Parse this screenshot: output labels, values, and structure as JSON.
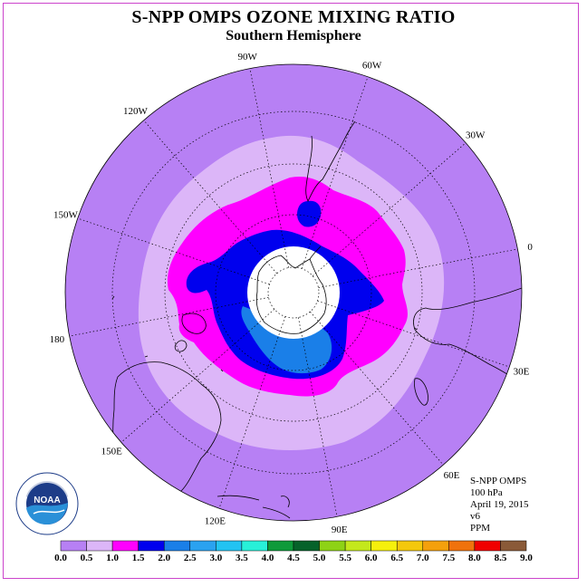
{
  "title": "S-NPP OMPS OZONE MIXING RATIO",
  "subtitle": "Southern Hemisphere",
  "longitude_labels": [
    "90W",
    "60W",
    "30W",
    "0",
    "30E",
    "60E",
    "90E",
    "120E",
    "150E",
    "180",
    "150W",
    "120W"
  ],
  "info": {
    "instrument": "S-NPP OMPS",
    "level": "100 hPa",
    "date": "April 19, 2015",
    "version": "v6",
    "units": "PPM"
  },
  "logo": {
    "text": "NOAA",
    "ring_text": "NATIONAL OCEANIC AND ATMOSPHERIC ADMINISTRATION · U.S. DEPARTMENT OF COMMERCE"
  },
  "colorbar": {
    "ticks": [
      "0.0",
      "0.5",
      "1.0",
      "1.5",
      "2.0",
      "2.5",
      "3.0",
      "3.5",
      "4.0",
      "4.5",
      "5.0",
      "5.5",
      "6.0",
      "6.5",
      "7.0",
      "7.5",
      "8.0",
      "8.5",
      "9.0"
    ],
    "colors": [
      "#b780f4",
      "#dcb6f8",
      "#ff00ff",
      "#0000ee",
      "#1a7fe8",
      "#2aa2f0",
      "#22c3f2",
      "#28f0d8",
      "#0e9a3a",
      "#06622a",
      "#8ed216",
      "#c4e81c",
      "#f6f00c",
      "#f4c80c",
      "#f4a00c",
      "#f0720c",
      "#f00000",
      "#8a5a38"
    ]
  },
  "map_colors": {
    "background": "#b780f4",
    "level_0_5": "#dcb6f8",
    "level_1_0": "#ff00ff",
    "level_1_5": "#0000ee",
    "level_2_0": "#1a7fe8",
    "no_data": "#ffffff"
  }
}
